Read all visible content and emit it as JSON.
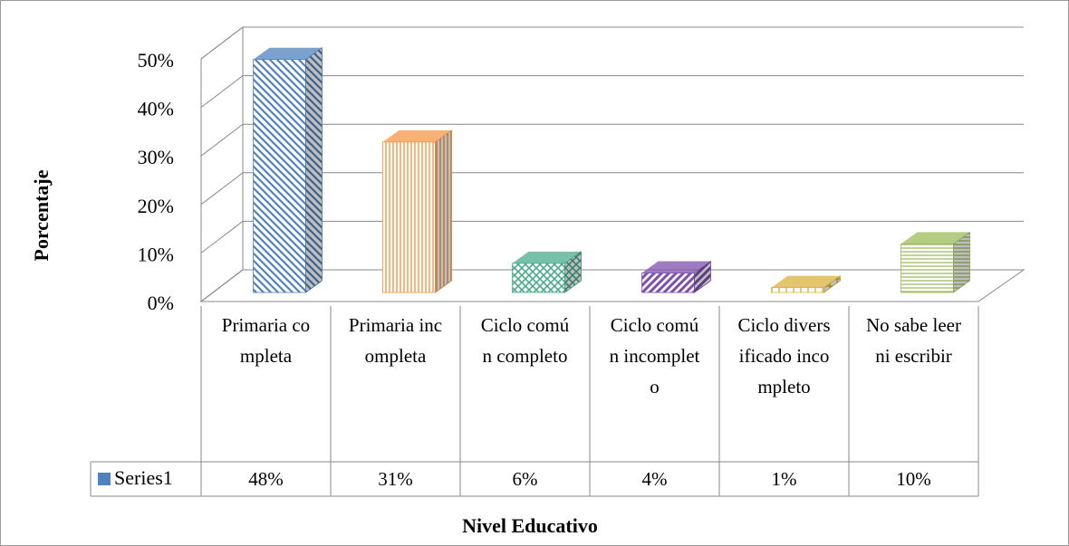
{
  "chart_data": {
    "type": "bar3d",
    "title": "Nivel Educativo",
    "y_label": "Porcentaje",
    "categories": [
      "Primaria completa",
      "Primaria incompleta",
      "Ciclo común completo",
      "Ciclo común incompleto",
      "Ciclo diversificado incompleto",
      "No sabe leer ni escribir"
    ],
    "series": [
      {
        "name": "Series1",
        "color": "#4f81bd",
        "values": [
          48,
          31,
          6,
          4,
          1,
          10
        ],
        "value_labels": [
          "48%",
          "31%",
          "6%",
          "4%",
          "1%",
          "10%"
        ],
        "colors": [
          "#4f81bd",
          "#f79646",
          "#4bab8c",
          "#7f4fb0",
          "#d9b23a",
          "#9bbb59"
        ]
      }
    ],
    "ylim": [
      0,
      50
    ],
    "yticks": [
      {
        "value": 0,
        "label": "0%"
      },
      {
        "value": 10,
        "label": "10%"
      },
      {
        "value": 20,
        "label": "20%"
      },
      {
        "value": 30,
        "label": "30%"
      },
      {
        "value": 40,
        "label": "40%"
      },
      {
        "value": 50,
        "label": "50%"
      }
    ],
    "grid": true
  }
}
